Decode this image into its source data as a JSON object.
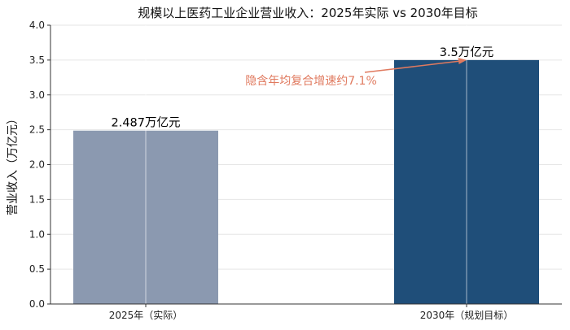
{
  "chart_data": {
    "type": "bar",
    "title": "规模以上医药工业企业营业收入：2025年实际 vs 2030年目标",
    "xlabel": "",
    "ylabel": "营业收入（万亿元）",
    "categories": [
      "2025年（实际）",
      "2030年（规划目标）"
    ],
    "values": [
      2.487,
      3.5
    ],
    "data_labels": [
      "2.487万亿元",
      "3.5万亿元"
    ],
    "bar_colors": [
      "#8b99b0",
      "#1f4e79"
    ],
    "ylim": [
      0,
      4.0
    ],
    "yticks": [
      "0.0",
      "0.5",
      "1.0",
      "1.5",
      "2.0",
      "2.5",
      "3.0",
      "3.5",
      "4.0"
    ],
    "grid": true,
    "annotation": {
      "text": "隐含年均复合增速约7.1%",
      "color": "#e07a5f",
      "arrow_to_category": 1,
      "arrow_to_value": 3.5
    }
  }
}
